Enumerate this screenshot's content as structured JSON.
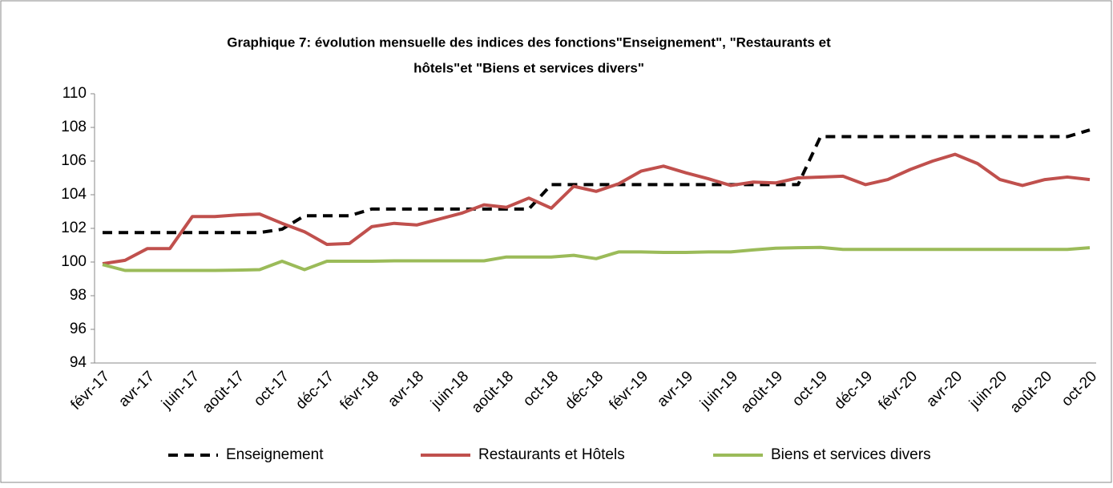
{
  "chart_data": {
    "type": "line",
    "title": "Graphique 7: évolution mensuelle des indices des fonctions\"Enseignement\", \"Restaurants et",
    "subtitle": "hôtels\"et \"Biens et services divers\"",
    "categories": [
      "févr-17",
      null,
      "avr-17",
      null,
      "juin-17",
      null,
      "août-17",
      null,
      "oct-17",
      null,
      "déc-17",
      null,
      "févr-18",
      null,
      "avr-18",
      null,
      "juin-18",
      null,
      "août-18",
      null,
      "oct-18",
      null,
      "déc-18",
      null,
      "févr-19",
      null,
      "avr-19",
      null,
      "juin-19",
      null,
      "août-19",
      null,
      "oct-19",
      null,
      "déc-19",
      null,
      "févr-20",
      null,
      "avr-20",
      null,
      "juin-20",
      null,
      "août-20",
      null,
      "oct-20"
    ],
    "series": [
      {
        "name": "Enseignement",
        "color": "#000000",
        "dash": true,
        "values": [
          101.75,
          101.75,
          101.75,
          101.75,
          101.75,
          101.75,
          101.75,
          101.75,
          101.95,
          102.75,
          102.75,
          102.75,
          103.15,
          103.15,
          103.15,
          103.15,
          103.15,
          103.15,
          103.15,
          103.15,
          104.6,
          104.6,
          104.6,
          104.6,
          104.6,
          104.6,
          104.6,
          104.6,
          104.6,
          104.6,
          104.6,
          104.6,
          107.45,
          107.45,
          107.45,
          107.45,
          107.45,
          107.45,
          107.45,
          107.45,
          107.45,
          107.45,
          107.45,
          107.45,
          107.85
        ]
      },
      {
        "name": "Restaurants et Hôtels",
        "color": "#c0504d",
        "values": [
          99.9,
          100.1,
          100.8,
          100.8,
          102.7,
          102.7,
          102.8,
          102.85,
          102.3,
          101.8,
          101.05,
          101.1,
          102.1,
          102.3,
          102.2,
          102.55,
          102.9,
          103.4,
          103.25,
          103.8,
          103.2,
          104.5,
          104.2,
          104.65,
          105.4,
          105.7,
          105.3,
          104.95,
          104.55,
          104.75,
          104.7,
          105.0,
          105.05,
          105.1,
          104.6,
          104.9,
          105.5,
          106.0,
          106.4,
          105.85,
          104.9,
          104.55,
          104.9,
          105.05,
          104.9
        ]
      },
      {
        "name": "Biens et services divers",
        "color": "#9bbb59",
        "values": [
          99.85,
          99.5,
          99.5,
          99.5,
          99.5,
          99.5,
          99.52,
          99.55,
          100.05,
          99.55,
          100.05,
          100.05,
          100.05,
          100.07,
          100.07,
          100.07,
          100.07,
          100.07,
          100.3,
          100.3,
          100.3,
          100.4,
          100.2,
          100.6,
          100.6,
          100.57,
          100.57,
          100.6,
          100.6,
          100.72,
          100.82,
          100.85,
          100.87,
          100.75,
          100.75,
          100.75,
          100.75,
          100.75,
          100.75,
          100.75,
          100.75,
          100.75,
          100.75,
          100.75,
          100.85
        ]
      }
    ],
    "ylim": [
      94,
      110
    ],
    "yticks": [
      94,
      96,
      98,
      100,
      102,
      104,
      106,
      108,
      110
    ],
    "grid": false,
    "legend": "bottom"
  }
}
